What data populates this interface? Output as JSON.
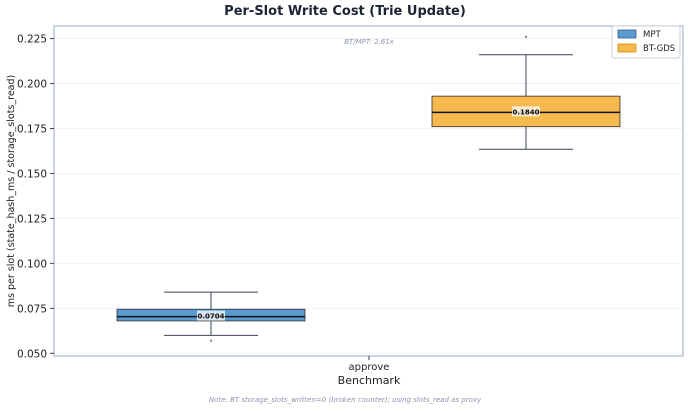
{
  "chart_data": {
    "type": "box",
    "title": "Per-Slot Write Cost (Trie Update)",
    "xlabel": "Benchmark",
    "ylabel": "ms per slot (state_hash_ms / storage_slots_read)",
    "categories": [
      "approve"
    ],
    "yticks": [
      "0.050",
      "0.075",
      "0.100",
      "0.125",
      "0.150",
      "0.175",
      "0.200",
      "0.225"
    ],
    "ylim": [
      0.0485,
      0.232
    ],
    "grid": true,
    "legend_position": "upper right",
    "annotation": "BT/MPT: 2.61x",
    "note": "Note: BT storage_slots_written=0 (broken counter); using slots_read as proxy",
    "series": [
      {
        "name": "MPT",
        "color": "#5b9bd1",
        "edge": "#2f5f8a",
        "median_label": "0.0704",
        "whisker_low": 0.06,
        "q1": 0.068,
        "median": 0.0704,
        "q3": 0.0745,
        "whisker_high": 0.084,
        "outliers": [
          0.057
        ]
      },
      {
        "name": "BT-GDS",
        "color": "#f6b94e",
        "edge": "#d4900e",
        "median_label": "0.1840",
        "whisker_low": 0.1635,
        "q1": 0.176,
        "median": 0.184,
        "q3": 0.193,
        "whisker_high": 0.216,
        "outliers": [
          0.226
        ]
      }
    ]
  }
}
